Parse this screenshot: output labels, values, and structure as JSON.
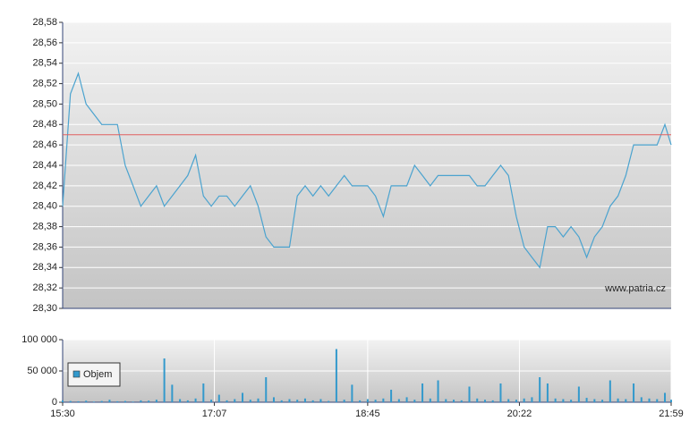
{
  "chart_data": [
    {
      "type": "line",
      "x": [
        "15:30",
        "15:35",
        "15:40",
        "15:45",
        "15:50",
        "15:55",
        "16:00",
        "16:05",
        "16:10",
        "16:15",
        "16:20",
        "16:25",
        "16:30",
        "16:35",
        "16:40",
        "16:45",
        "16:50",
        "16:55",
        "17:00",
        "17:05",
        "17:10",
        "17:15",
        "17:20",
        "17:25",
        "17:30",
        "17:35",
        "17:40",
        "17:45",
        "17:50",
        "17:55",
        "18:00",
        "18:05",
        "18:10",
        "18:15",
        "18:20",
        "18:25",
        "18:30",
        "18:35",
        "18:40",
        "18:45",
        "18:50",
        "18:55",
        "19:00",
        "19:05",
        "19:10",
        "19:15",
        "19:20",
        "19:25",
        "19:30",
        "19:35",
        "19:40",
        "19:45",
        "19:50",
        "19:55",
        "20:00",
        "20:05",
        "20:10",
        "20:15",
        "20:20",
        "20:25",
        "20:30",
        "20:35",
        "20:40",
        "20:45",
        "20:50",
        "20:55",
        "21:00",
        "21:05",
        "21:10",
        "21:15",
        "21:20",
        "21:25",
        "21:30",
        "21:35",
        "21:40",
        "21:45",
        "21:50",
        "21:55",
        "21:59"
      ],
      "series": [
        {
          "color": "#4ba3cf",
          "values": [
            28.4,
            28.51,
            28.53,
            28.5,
            28.49,
            28.48,
            28.48,
            28.48,
            28.44,
            28.42,
            28.4,
            28.41,
            28.42,
            28.4,
            28.41,
            28.42,
            28.43,
            28.45,
            28.41,
            28.4,
            28.41,
            28.41,
            28.4,
            28.41,
            28.42,
            28.4,
            28.37,
            28.36,
            28.36,
            28.36,
            28.41,
            28.42,
            28.41,
            28.42,
            28.41,
            28.42,
            28.43,
            28.42,
            28.42,
            28.42,
            28.41,
            28.39,
            28.42,
            28.42,
            28.42,
            28.44,
            28.43,
            28.42,
            28.43,
            28.43,
            28.43,
            28.43,
            28.43,
            28.42,
            28.42,
            28.43,
            28.44,
            28.43,
            28.39,
            28.36,
            28.35,
            28.34,
            28.38,
            28.38,
            28.37,
            28.38,
            28.37,
            28.35,
            28.37,
            28.38,
            28.4,
            28.41,
            28.43,
            28.46,
            28.46,
            28.46,
            28.46,
            28.48,
            28.46
          ]
        }
      ],
      "xlim": [
        "15:30",
        "21:59"
      ],
      "ylim": [
        28.3,
        28.58
      ],
      "yticks": [
        {
          "value": 28.3,
          "label": "28,30"
        },
        {
          "value": 28.32,
          "label": "28,32"
        },
        {
          "value": 28.34,
          "label": "28,34"
        },
        {
          "value": 28.36,
          "label": "28,36"
        },
        {
          "value": 28.38,
          "label": "28,38"
        },
        {
          "value": 28.4,
          "label": "28,40"
        },
        {
          "value": 28.42,
          "label": "28,42"
        },
        {
          "value": 28.44,
          "label": "28,44"
        },
        {
          "value": 28.46,
          "label": "28,46"
        },
        {
          "value": 28.48,
          "label": "28,48"
        },
        {
          "value": 28.5,
          "label": "28,50"
        },
        {
          "value": 28.52,
          "label": "28,52"
        },
        {
          "value": 28.54,
          "label": "28,54"
        },
        {
          "value": 28.56,
          "label": "28,56"
        },
        {
          "value": 28.58,
          "label": "28,58"
        }
      ],
      "reference_line": {
        "value": 28.47,
        "color": "#e06060"
      },
      "watermark": "www.patria.cz",
      "grid": true
    },
    {
      "type": "bar",
      "x": [
        "15:30",
        "15:35",
        "15:40",
        "15:45",
        "15:50",
        "15:55",
        "16:00",
        "16:05",
        "16:10",
        "16:15",
        "16:20",
        "16:25",
        "16:30",
        "16:35",
        "16:40",
        "16:45",
        "16:50",
        "16:55",
        "17:00",
        "17:05",
        "17:10",
        "17:15",
        "17:20",
        "17:25",
        "17:30",
        "17:35",
        "17:40",
        "17:45",
        "17:50",
        "17:55",
        "18:00",
        "18:05",
        "18:10",
        "18:15",
        "18:20",
        "18:25",
        "18:30",
        "18:35",
        "18:40",
        "18:45",
        "18:50",
        "18:55",
        "19:00",
        "19:05",
        "19:10",
        "19:15",
        "19:20",
        "19:25",
        "19:30",
        "19:35",
        "19:40",
        "19:45",
        "19:50",
        "19:55",
        "20:00",
        "20:05",
        "20:10",
        "20:15",
        "20:20",
        "20:25",
        "20:30",
        "20:35",
        "20:40",
        "20:45",
        "20:50",
        "20:55",
        "21:00",
        "21:05",
        "21:10",
        "21:15",
        "21:20",
        "21:25",
        "21:30",
        "21:35",
        "21:40",
        "21:45",
        "21:50",
        "21:55",
        "21:59"
      ],
      "series": [
        {
          "name": "Objem",
          "color": "#3399cc",
          "values": [
            3000,
            2000,
            1500,
            2500,
            1000,
            2000,
            4000,
            1500,
            2000,
            1000,
            3000,
            2500,
            4000,
            70000,
            28000,
            5000,
            3000,
            6000,
            30000,
            4000,
            12000,
            3000,
            5000,
            15000,
            4000,
            6000,
            40000,
            8000,
            3000,
            5000,
            4000,
            6000,
            3000,
            5000,
            2000,
            85000,
            4000,
            28000,
            3000,
            5000,
            4000,
            6000,
            20000,
            5000,
            8000,
            4000,
            30000,
            6000,
            35000,
            5000,
            4000,
            3000,
            25000,
            6000,
            4000,
            3000,
            30000,
            5000,
            4000,
            6000,
            8000,
            40000,
            30000,
            6000,
            5000,
            4000,
            25000,
            7000,
            5000,
            4000,
            35000,
            6000,
            5000,
            30000,
            8000,
            6000,
            5000,
            15000,
            4000
          ]
        }
      ],
      "xlim": [
        "15:30",
        "21:59"
      ],
      "xticks": [
        "15:30",
        "17:07",
        "18:45",
        "20:22",
        "21:59"
      ],
      "ylim": [
        0,
        100000
      ],
      "yticks": [
        0,
        {
          "value": 50000,
          "label": "50 000"
        },
        {
          "value": 100000,
          "label": "100 000"
        }
      ],
      "legend": "lower left",
      "grid": true
    }
  ]
}
